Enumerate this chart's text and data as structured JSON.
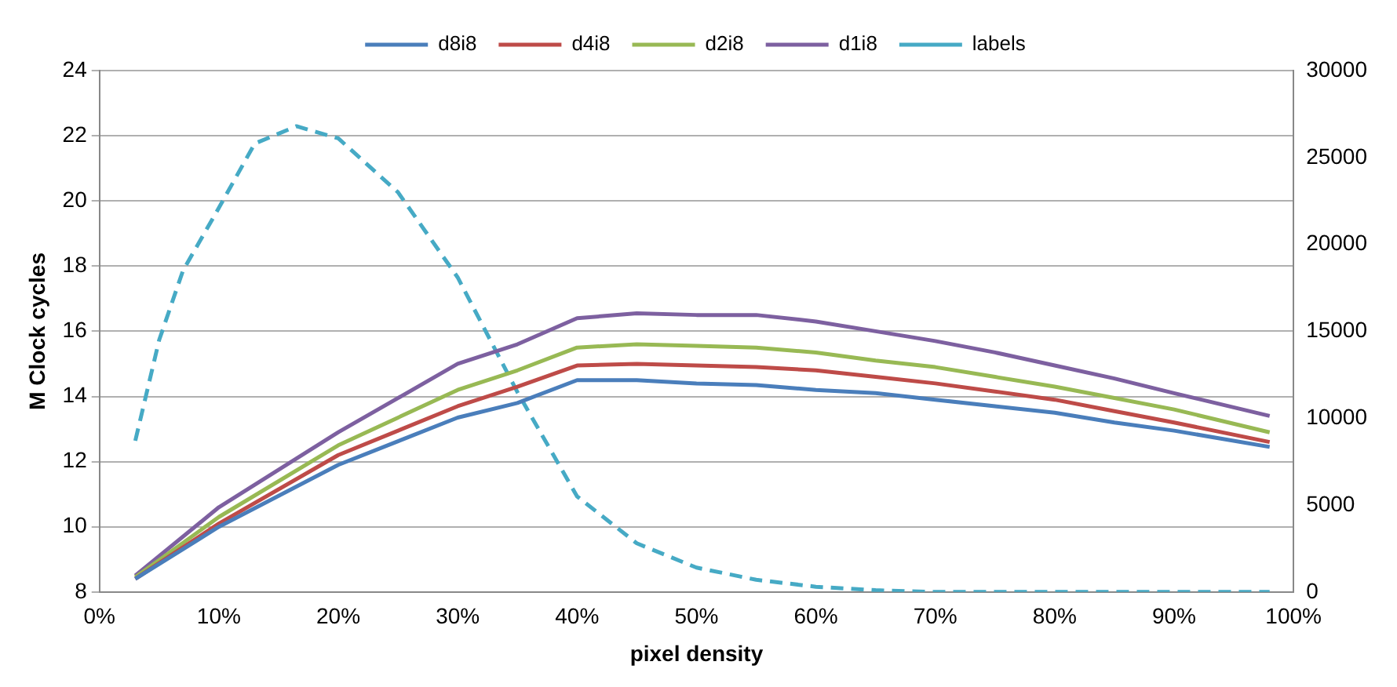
{
  "chart_data": {
    "type": "line",
    "xlabel": "pixel density",
    "ylabel": "M Clock cycles",
    "x": [
      3,
      5,
      7,
      10,
      13,
      16.5,
      20,
      25,
      30,
      35,
      40,
      45,
      50,
      55,
      60,
      65,
      70,
      75,
      80,
      85,
      90,
      98
    ],
    "series": [
      {
        "name": "d8i8",
        "color": "#4a7ebb",
        "x": [
          3,
          10,
          20,
          30,
          35,
          40,
          45,
          50,
          55,
          60,
          65,
          70,
          75,
          80,
          85,
          90,
          98
        ],
        "values": [
          8.4,
          10.0,
          11.9,
          13.35,
          13.8,
          14.5,
          14.5,
          14.4,
          14.35,
          14.2,
          14.1,
          13.9,
          13.7,
          13.5,
          13.2,
          12.95,
          12.45
        ]
      },
      {
        "name": "d4i8",
        "color": "#be4b48",
        "x": [
          3,
          10,
          20,
          30,
          35,
          40,
          45,
          50,
          55,
          60,
          65,
          70,
          75,
          80,
          85,
          90,
          98
        ],
        "values": [
          8.4,
          10.1,
          12.2,
          13.7,
          14.3,
          14.95,
          15.0,
          14.95,
          14.9,
          14.8,
          14.6,
          14.4,
          14.15,
          13.9,
          13.55,
          13.2,
          12.6
        ]
      },
      {
        "name": "d2i8",
        "color": "#98b954",
        "x": [
          3,
          10,
          20,
          30,
          35,
          40,
          45,
          50,
          55,
          60,
          65,
          70,
          75,
          80,
          85,
          90,
          98
        ],
        "values": [
          8.45,
          10.3,
          12.5,
          14.2,
          14.8,
          15.5,
          15.6,
          15.55,
          15.5,
          15.35,
          15.1,
          14.9,
          14.6,
          14.3,
          13.95,
          13.6,
          12.9
        ]
      },
      {
        "name": "d1i8",
        "color": "#7d60a0",
        "x": [
          3,
          10,
          20,
          30,
          35,
          40,
          45,
          50,
          55,
          60,
          65,
          70,
          75,
          80,
          85,
          90,
          98
        ],
        "values": [
          8.5,
          10.6,
          12.9,
          15.0,
          15.6,
          16.4,
          16.55,
          16.5,
          16.5,
          16.3,
          16.0,
          15.7,
          15.35,
          14.95,
          14.55,
          14.1,
          13.4
        ]
      },
      {
        "name": "labels",
        "color": "#46aac5",
        "axis": "y2",
        "line_style": "dashed",
        "values": [
          8700,
          14500,
          18500,
          22100,
          25800,
          26800,
          26100,
          23000,
          18100,
          11500,
          5500,
          2800,
          1400,
          700,
          300,
          100,
          0,
          0,
          0,
          0,
          0,
          0
        ]
      }
    ],
    "xlim": [
      0,
      100
    ],
    "xticks": [
      {
        "value": 0,
        "label": "0%"
      },
      {
        "value": 10,
        "label": "10%"
      },
      {
        "value": 20,
        "label": "20%"
      },
      {
        "value": 30,
        "label": "30%"
      },
      {
        "value": 40,
        "label": "40%"
      },
      {
        "value": 50,
        "label": "50%"
      },
      {
        "value": 60,
        "label": "60%"
      },
      {
        "value": 70,
        "label": "70%"
      },
      {
        "value": 80,
        "label": "80%"
      },
      {
        "value": 90,
        "label": "90%"
      },
      {
        "value": 100,
        "label": "100%"
      }
    ],
    "ylim": [
      8,
      24
    ],
    "yticks": [
      8,
      10,
      12,
      14,
      16,
      18,
      20,
      22,
      24
    ],
    "y2lim": [
      0,
      30000
    ],
    "y2ticks": [
      0,
      5000,
      10000,
      15000,
      20000,
      25000,
      30000
    ],
    "grid": "y",
    "legend": "top",
    "marker": "none"
  }
}
